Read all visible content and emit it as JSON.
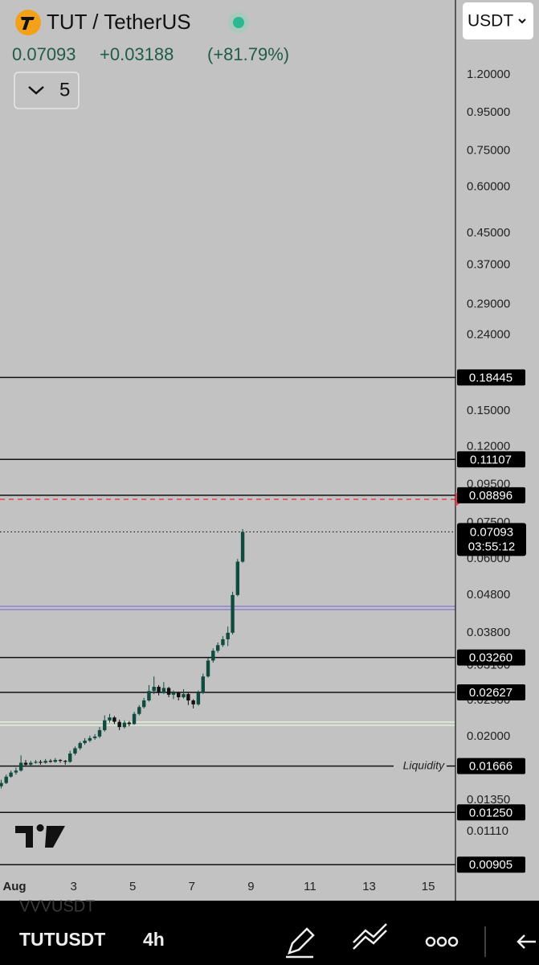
{
  "header": {
    "title": "TUT / TetherUS",
    "price": "0.07093",
    "change": "+0.03188",
    "change_pct": "(+81.79%)",
    "indicator_count": "5",
    "currency": "USDT"
  },
  "bottom_bar": {
    "symbol": "TUTUSDT",
    "interval": "4h",
    "behind": "VVVUSDT"
  },
  "chart_data": {
    "type": "candlestick",
    "log_scale": true,
    "ylim": [
      0.00862,
      1.906
    ],
    "yticks": [
      {
        "value": 1.2,
        "label": "1.20000"
      },
      {
        "value": 0.95,
        "label": "0.95000"
      },
      {
        "value": 0.75,
        "label": "0.75000"
      },
      {
        "value": 0.6,
        "label": "0.60000"
      },
      {
        "value": 0.45,
        "label": "0.45000"
      },
      {
        "value": 0.37,
        "label": "0.37000"
      },
      {
        "value": 0.29,
        "label": "0.29000"
      },
      {
        "value": 0.24,
        "label": "0.24000"
      },
      {
        "value": 0.15,
        "label": "0.15000"
      },
      {
        "value": 0.12,
        "label": "0.12000"
      },
      {
        "value": 0.095,
        "label": "0.09500"
      },
      {
        "value": 0.075,
        "label": "0.07500"
      },
      {
        "value": 0.06,
        "label": "0.06000"
      },
      {
        "value": 0.048,
        "label": "0.04800"
      },
      {
        "value": 0.038,
        "label": "0.03800"
      },
      {
        "value": 0.031,
        "label": "0.03100"
      },
      {
        "value": 0.025,
        "label": "0.02500"
      },
      {
        "value": 0.02,
        "label": "0.02000"
      },
      {
        "value": 0.0135,
        "label": "0.01350"
      },
      {
        "value": 0.0111,
        "label": "0.01110"
      }
    ],
    "xlim": [
      0.51,
      15.92
    ],
    "xticks": [
      {
        "value": 1,
        "label": "Aug"
      },
      3,
      5,
      7,
      9,
      11,
      13,
      15
    ],
    "up_color": "#0f4c3e",
    "down_color": "#111111",
    "x": [
      0.55,
      0.72,
      0.88,
      1.05,
      1.22,
      1.38,
      1.55,
      1.72,
      1.88,
      2.05,
      2.22,
      2.38,
      2.55,
      2.72,
      2.88,
      3.05,
      3.22,
      3.38,
      3.55,
      3.72,
      3.88,
      4.05,
      4.22,
      4.38,
      4.55,
      4.72,
      4.88,
      5.05,
      5.22,
      5.38,
      5.55,
      5.72,
      5.88,
      6.05,
      6.22,
      6.38,
      6.55,
      6.72,
      6.88,
      7.05,
      7.22,
      7.38,
      7.55,
      7.72,
      7.88,
      8.05,
      8.22,
      8.38,
      8.55,
      8.72
    ],
    "candles": [
      [
        0.0147,
        0.0153,
        0.0145,
        0.015
      ],
      [
        0.015,
        0.0158,
        0.0149,
        0.0156
      ],
      [
        0.0156,
        0.0162,
        0.0155,
        0.016
      ],
      [
        0.016,
        0.0165,
        0.0158,
        0.0162
      ],
      [
        0.0162,
        0.0178,
        0.0161,
        0.017
      ],
      [
        0.017,
        0.0173,
        0.0166,
        0.0168
      ],
      [
        0.0168,
        0.0172,
        0.0167,
        0.017
      ],
      [
        0.017,
        0.0173,
        0.0169,
        0.0171
      ],
      [
        0.0171,
        0.0173,
        0.0168,
        0.017
      ],
      [
        0.017,
        0.0174,
        0.0169,
        0.0172
      ],
      [
        0.0172,
        0.0174,
        0.017,
        0.0171
      ],
      [
        0.0171,
        0.0175,
        0.017,
        0.0173
      ],
      [
        0.0173,
        0.0174,
        0.017,
        0.0172
      ],
      [
        0.0172,
        0.0173,
        0.0168,
        0.0171
      ],
      [
        0.0171,
        0.0183,
        0.017,
        0.018
      ],
      [
        0.018,
        0.0188,
        0.0178,
        0.0186
      ],
      [
        0.0186,
        0.0194,
        0.0184,
        0.0192
      ],
      [
        0.0192,
        0.0198,
        0.019,
        0.0195
      ],
      [
        0.0195,
        0.0201,
        0.0193,
        0.0198
      ],
      [
        0.0198,
        0.0203,
        0.0196,
        0.02
      ],
      [
        0.02,
        0.0212,
        0.0198,
        0.0208
      ],
      [
        0.0208,
        0.0228,
        0.0206,
        0.0221
      ],
      [
        0.0221,
        0.023,
        0.0218,
        0.0225
      ],
      [
        0.0225,
        0.0227,
        0.0216,
        0.0219
      ],
      [
        0.0219,
        0.0222,
        0.0208,
        0.0212
      ],
      [
        0.0212,
        0.0221,
        0.021,
        0.0218
      ],
      [
        0.0218,
        0.022,
        0.0213,
        0.0216
      ],
      [
        0.0216,
        0.0233,
        0.0215,
        0.023
      ],
      [
        0.023,
        0.0243,
        0.0228,
        0.024
      ],
      [
        0.024,
        0.0254,
        0.0238,
        0.025
      ],
      [
        0.025,
        0.0275,
        0.0248,
        0.0265
      ],
      [
        0.0265,
        0.029,
        0.026,
        0.0272
      ],
      [
        0.0272,
        0.0275,
        0.0258,
        0.0262
      ],
      [
        0.0262,
        0.028,
        0.026,
        0.027
      ],
      [
        0.027,
        0.0272,
        0.0255,
        0.0259
      ],
      [
        0.0259,
        0.0266,
        0.0252,
        0.0262
      ],
      [
        0.0262,
        0.0264,
        0.025,
        0.0255
      ],
      [
        0.0255,
        0.0268,
        0.0253,
        0.026
      ],
      [
        0.026,
        0.0262,
        0.0243,
        0.025
      ],
      [
        0.025,
        0.0252,
        0.0238,
        0.0244
      ],
      [
        0.0244,
        0.0266,
        0.0242,
        0.0262
      ],
      [
        0.0262,
        0.0295,
        0.026,
        0.029
      ],
      [
        0.029,
        0.0325,
        0.0288,
        0.032
      ],
      [
        0.032,
        0.0345,
        0.0316,
        0.034
      ],
      [
        0.034,
        0.0358,
        0.0336,
        0.0352
      ],
      [
        0.0352,
        0.0372,
        0.0348,
        0.0365
      ],
      [
        0.0365,
        0.0395,
        0.035,
        0.038
      ],
      [
        0.038,
        0.049,
        0.0376,
        0.048
      ],
      [
        0.048,
        0.06,
        0.0476,
        0.059
      ],
      [
        0.059,
        0.0722,
        0.0586,
        0.07093
      ]
    ],
    "levels": [
      {
        "value": 0.18445,
        "label": "0.18445"
      },
      {
        "value": 0.11107,
        "label": "0.11107"
      },
      {
        "value": 0.08896,
        "label": "0.08896"
      },
      {
        "value": 0.0326,
        "label": "0.03260"
      },
      {
        "value": 0.02627,
        "label": "0.02627"
      },
      {
        "value": 0.01666,
        "label": "0.01666",
        "annotation": "Liquidity"
      },
      {
        "value": 0.0125,
        "label": "0.01250"
      },
      {
        "value": 0.00905,
        "label": "0.00905"
      }
    ],
    "alert": {
      "value": 0.0868,
      "color": "#e8414d"
    },
    "zones": [
      {
        "value": 0.0443,
        "color": "#8d82cc"
      },
      {
        "value": 0.02165,
        "color": "#dff0d8"
      }
    ],
    "last_price": {
      "value": 0.07093,
      "label": "0.07093",
      "countdown": "03:55:12"
    }
  }
}
